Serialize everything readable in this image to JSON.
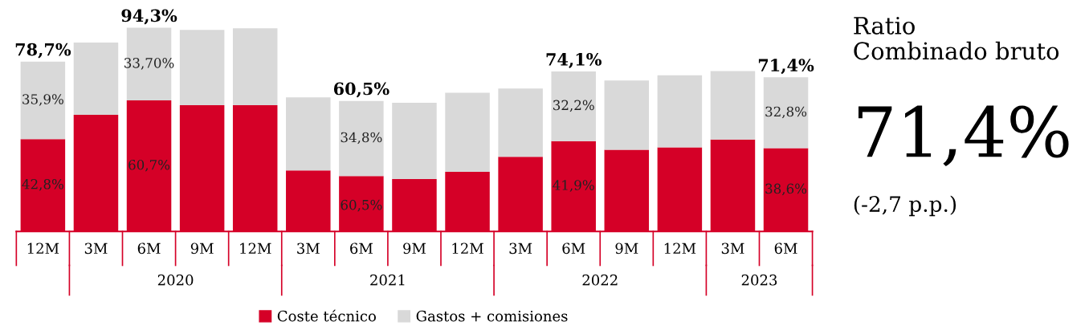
{
  "chart_data": {
    "type": "bar",
    "stacked": true,
    "categories": [
      "12M",
      "3M",
      "6M",
      "9M",
      "12M",
      "3M",
      "6M",
      "9M",
      "12M",
      "3M",
      "6M",
      "9M",
      "12M",
      "3M",
      "6M"
    ],
    "series": [
      {
        "name": "Coste técnico",
        "color": "#d50027",
        "values": [
          42.8,
          54.0,
          60.7,
          58.5,
          58.5,
          28.3,
          25.7,
          24.3,
          27.6,
          34.6,
          41.9,
          37.9,
          39.0,
          42.6,
          38.6
        ],
        "value_labels": [
          "42,8%",
          null,
          "60,7%",
          null,
          null,
          null,
          null,
          null,
          null,
          null,
          "41,9%",
          null,
          null,
          null,
          "38,6%"
        ]
      },
      {
        "name": "Gastos + comisiones",
        "color": "#d9d9d9",
        "values": [
          35.9,
          33.5,
          33.7,
          34.9,
          35.6,
          33.8,
          34.8,
          35.3,
          36.7,
          31.6,
          32.2,
          32.0,
          33.4,
          31.7,
          32.8
        ],
        "value_labels": [
          "35,9%",
          null,
          "33,70%",
          null,
          null,
          null,
          "34,8%",
          null,
          null,
          null,
          "32,2%",
          null,
          null,
          null,
          "32,8%"
        ]
      }
    ],
    "totals": [
      "78,7%",
      null,
      "94,3%",
      null,
      null,
      null,
      "60,5%",
      null,
      null,
      null,
      "74,1%",
      null,
      null,
      null,
      "71,4%"
    ],
    "annotations": [
      "2020",
      "2021",
      "2022",
      "2023",
      "Ratio\nCombinado bruto",
      "71,4%",
      "(-2,7 p.p.)",
      "60,5%"
    ],
    "legend": "bottom",
    "grid": false
  }
}
